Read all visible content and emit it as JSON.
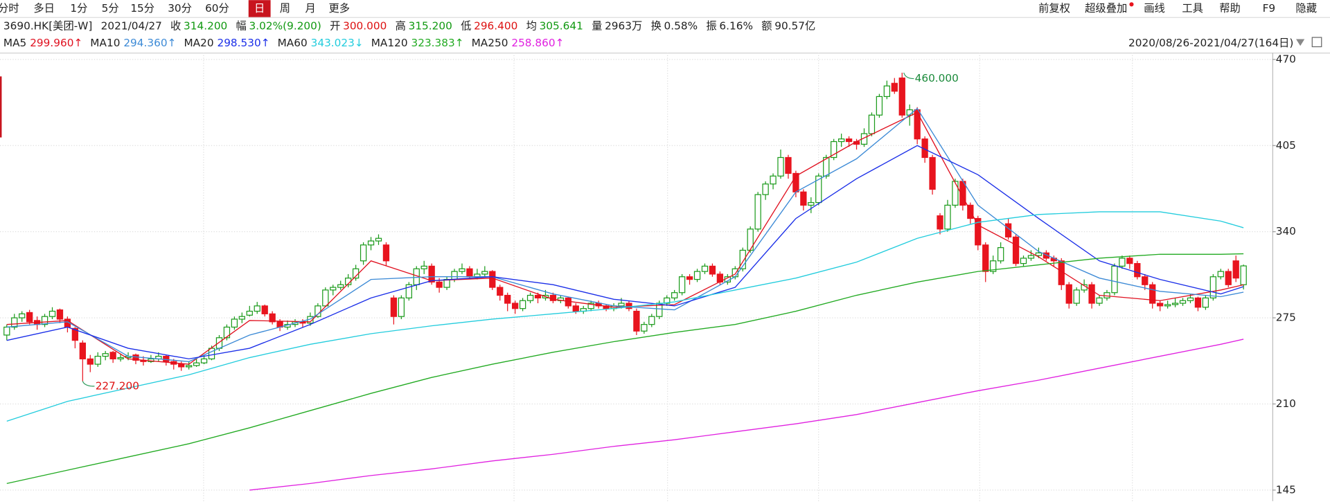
{
  "toolbar": {
    "periods": [
      "分时",
      "多日",
      "1分",
      "5分",
      "15分",
      "30分",
      "60分",
      "日",
      "周",
      "月",
      "更多"
    ],
    "selected": 7,
    "right": [
      "前复权",
      "超级叠加",
      "画线",
      "工具",
      "帮助",
      "F9",
      "隐藏"
    ]
  },
  "info": {
    "symbol": "3690.HK[美团-W]",
    "date": "2021/04/27",
    "fields": [
      {
        "label": "收",
        "value": "314.200",
        "color": "#119911"
      },
      {
        "label": "幅",
        "value": "3.02%(9.200)",
        "color": "#119911"
      },
      {
        "label": "开",
        "value": "300.000",
        "color": "#dd1111"
      },
      {
        "label": "高",
        "value": "315.200",
        "color": "#119911"
      },
      {
        "label": "低",
        "value": "296.400",
        "color": "#dd1111"
      },
      {
        "label": "均",
        "value": "305.641",
        "color": "#119911"
      },
      {
        "label": "量",
        "value": "2963万",
        "color": "#222222"
      },
      {
        "label": "换",
        "value": "0.58%",
        "color": "#222222"
      },
      {
        "label": "振",
        "value": "6.16%",
        "color": "#222222"
      },
      {
        "label": "额",
        "value": "90.57亿",
        "color": "#222222"
      }
    ]
  },
  "range_label": "2020/08/26-2021/04/27(164日)",
  "chart_data": {
    "type": "candlestick",
    "up_color": "#1a9a1a",
    "down_color": "#e8141e",
    "grid": true,
    "ylim": [
      138.6,
      475.1
    ],
    "yticks": [
      145,
      210,
      275,
      340,
      405,
      470
    ],
    "high_label": "460.000",
    "low_label": "227.200",
    "ohlc": [
      [
        262,
        270,
        258,
        268
      ],
      [
        268,
        278,
        266,
        275
      ],
      [
        275,
        280,
        272,
        278
      ],
      [
        279,
        281,
        270,
        272
      ],
      [
        273,
        276,
        266,
        270
      ],
      [
        270,
        278,
        268,
        276
      ],
      [
        276,
        283,
        274,
        280
      ],
      [
        281,
        282,
        271,
        274
      ],
      [
        274,
        276,
        264,
        268
      ],
      [
        267,
        268,
        252,
        258
      ],
      [
        256,
        258,
        227.2,
        244
      ],
      [
        244,
        247,
        234,
        240
      ],
      [
        240,
        249,
        238,
        246
      ],
      [
        246,
        250,
        243,
        248
      ],
      [
        249,
        250,
        241,
        244
      ],
      [
        244,
        248,
        242,
        245
      ],
      [
        245,
        249,
        243,
        246
      ],
      [
        247,
        248,
        240,
        243
      ],
      [
        243,
        246,
        239,
        242
      ],
      [
        242,
        247,
        241,
        244
      ],
      [
        244,
        249,
        242,
        246
      ],
      [
        246,
        247,
        239,
        242
      ],
      [
        242,
        244,
        236,
        240
      ],
      [
        240,
        242,
        235,
        238
      ],
      [
        238,
        242,
        236,
        239
      ],
      [
        239,
        244,
        238,
        241
      ],
      [
        241,
        247,
        240,
        244
      ],
      [
        244,
        254,
        243,
        252
      ],
      [
        252,
        262,
        250,
        260
      ],
      [
        260,
        270,
        258,
        268
      ],
      [
        268,
        276,
        266,
        274
      ],
      [
        274,
        279,
        271,
        276
      ],
      [
        277,
        284,
        276,
        280
      ],
      [
        280,
        287,
        278,
        284
      ],
      [
        284,
        285,
        276,
        278
      ],
      [
        278,
        280,
        270,
        272
      ],
      [
        272,
        274,
        265,
        268
      ],
      [
        268,
        273,
        266,
        270
      ],
      [
        270,
        274,
        268,
        272
      ],
      [
        272,
        274,
        268,
        271
      ],
      [
        271,
        279,
        269,
        276
      ],
      [
        276,
        286,
        275,
        284
      ],
      [
        284,
        298,
        283,
        296
      ],
      [
        296,
        300,
        292,
        298
      ],
      [
        298,
        303,
        296,
        300
      ],
      [
        300,
        308,
        298,
        305
      ],
      [
        305,
        315,
        303,
        312
      ],
      [
        318,
        332,
        315,
        330
      ],
      [
        330,
        336,
        326,
        333
      ],
      [
        333,
        338,
        330,
        335
      ],
      [
        330,
        332,
        314,
        318
      ],
      [
        290,
        292,
        270,
        276
      ],
      [
        276,
        292,
        274,
        290
      ],
      [
        290,
        302,
        288,
        300
      ],
      [
        300,
        314,
        296,
        312
      ],
      [
        312,
        318,
        308,
        314
      ],
      [
        314,
        316,
        300,
        302
      ],
      [
        302,
        305,
        294,
        298
      ],
      [
        298,
        306,
        296,
        304
      ],
      [
        304,
        312,
        302,
        310
      ],
      [
        310,
        316,
        308,
        312
      ],
      [
        312,
        314,
        304,
        306
      ],
      [
        306,
        312,
        304,
        308
      ],
      [
        308,
        314,
        306,
        310
      ],
      [
        310,
        311,
        296,
        298
      ],
      [
        298,
        300,
        288,
        292
      ],
      [
        292,
        294,
        280,
        286
      ],
      [
        286,
        288,
        278,
        282
      ],
      [
        282,
        290,
        280,
        288
      ],
      [
        288,
        294,
        286,
        292
      ],
      [
        292,
        294,
        286,
        290
      ],
      [
        290,
        296,
        288,
        292
      ],
      [
        292,
        294,
        286,
        288
      ],
      [
        288,
        292,
        286,
        290
      ],
      [
        290,
        291,
        282,
        284
      ],
      [
        284,
        286,
        278,
        280
      ],
      [
        280,
        284,
        278,
        282
      ],
      [
        282,
        288,
        280,
        286
      ],
      [
        286,
        288,
        282,
        284
      ],
      [
        284,
        285,
        280,
        282
      ],
      [
        282,
        286,
        280,
        284
      ],
      [
        284,
        290,
        282,
        286
      ],
      [
        286,
        288,
        280,
        282
      ],
      [
        280,
        282,
        262,
        265
      ],
      [
        265,
        272,
        263,
        270
      ],
      [
        270,
        278,
        268,
        276
      ],
      [
        276,
        288,
        274,
        286
      ],
      [
        286,
        292,
        284,
        290
      ],
      [
        290,
        296,
        288,
        294
      ],
      [
        294,
        308,
        292,
        306
      ],
      [
        306,
        308,
        300,
        304
      ],
      [
        304,
        312,
        302,
        310
      ],
      [
        310,
        316,
        308,
        314
      ],
      [
        314,
        316,
        306,
        308
      ],
      [
        308,
        310,
        300,
        302
      ],
      [
        302,
        308,
        300,
        306
      ],
      [
        306,
        314,
        304,
        312
      ],
      [
        312,
        328,
        310,
        326
      ],
      [
        326,
        344,
        324,
        342
      ],
      [
        342,
        370,
        340,
        368
      ],
      [
        368,
        378,
        364,
        376
      ],
      [
        376,
        384,
        372,
        382
      ],
      [
        382,
        402,
        380,
        396
      ],
      [
        396,
        398,
        380,
        384
      ],
      [
        384,
        386,
        366,
        370
      ],
      [
        370,
        372,
        356,
        360
      ],
      [
        360,
        366,
        354,
        362
      ],
      [
        362,
        384,
        360,
        382
      ],
      [
        382,
        398,
        380,
        396
      ],
      [
        396,
        410,
        394,
        408
      ],
      [
        408,
        414,
        404,
        410
      ],
      [
        410,
        412,
        404,
        408
      ],
      [
        408,
        410,
        402,
        406
      ],
      [
        406,
        418,
        404,
        414
      ],
      [
        414,
        430,
        412,
        428
      ],
      [
        428,
        444,
        426,
        442
      ],
      [
        442,
        454,
        440,
        450
      ],
      [
        452,
        456,
        444,
        446
      ],
      [
        456,
        460,
        426,
        428
      ],
      [
        428,
        436,
        420,
        432
      ],
      [
        432,
        434,
        406,
        410
      ],
      [
        410,
        412,
        392,
        396
      ],
      [
        396,
        398,
        368,
        372
      ],
      [
        352,
        354,
        338,
        342
      ],
      [
        342,
        364,
        340,
        360
      ],
      [
        360,
        380,
        358,
        378
      ],
      [
        378,
        380,
        356,
        360
      ],
      [
        360,
        362,
        346,
        350
      ],
      [
        350,
        352,
        326,
        330
      ],
      [
        330,
        332,
        302,
        310
      ],
      [
        310,
        322,
        308,
        318
      ],
      [
        318,
        332,
        316,
        328
      ],
      [
        346,
        350,
        334,
        336
      ],
      [
        336,
        338,
        314,
        316
      ],
      [
        316,
        322,
        314,
        320
      ],
      [
        320,
        326,
        318,
        322
      ],
      [
        322,
        328,
        320,
        324
      ],
      [
        324,
        326,
        318,
        320
      ],
      [
        320,
        322,
        314,
        318
      ],
      [
        318,
        320,
        296,
        300
      ],
      [
        300,
        302,
        282,
        286
      ],
      [
        286,
        298,
        284,
        296
      ],
      [
        296,
        304,
        294,
        300
      ],
      [
        300,
        302,
        282,
        286
      ],
      [
        286,
        292,
        284,
        290
      ],
      [
        290,
        296,
        288,
        294
      ],
      [
        294,
        316,
        292,
        314
      ],
      [
        314,
        322,
        312,
        320
      ],
      [
        320,
        322,
        312,
        316
      ],
      [
        316,
        318,
        304,
        306
      ],
      [
        306,
        308,
        296,
        300
      ],
      [
        300,
        302,
        282,
        286
      ],
      [
        286,
        288,
        280,
        284
      ],
      [
        284,
        288,
        282,
        285
      ],
      [
        285,
        290,
        283,
        286
      ],
      [
        286,
        290,
        284,
        288
      ],
      [
        288,
        293,
        286,
        290
      ],
      [
        290,
        291,
        280,
        283
      ],
      [
        283,
        292,
        281,
        290
      ],
      [
        290,
        308,
        288,
        306
      ],
      [
        306,
        312,
        304,
        310
      ],
      [
        310,
        312,
        298,
        300
      ],
      [
        318,
        322,
        302,
        305
      ],
      [
        300,
        315.2,
        296.4,
        314.2
      ]
    ],
    "ma_x": [
      0,
      8,
      16,
      24,
      32,
      40,
      48,
      56,
      64,
      72,
      80,
      88,
      96,
      104,
      112,
      120,
      128,
      136,
      144,
      152,
      160,
      163
    ],
    "series": [
      {
        "name": "MA5",
        "color": "#e0101f",
        "value_label": "299.960↑",
        "values": [
          270,
          273,
          244,
          240,
          273,
          272,
          318,
          303,
          305,
          289,
          283,
          285,
          308,
          382,
          408,
          430,
          345,
          321,
          292,
          288,
          296,
          299.96
        ]
      },
      {
        "name": "MA10",
        "color": "#3c8ad6",
        "value_label": "294.360↑",
        "values": [
          268,
          272,
          246,
          242,
          262,
          274,
          304,
          306,
          306,
          293,
          284,
          281,
          306,
          370,
          395,
          433,
          360,
          325,
          305,
          295,
          291,
          294.36
        ]
      },
      {
        "name": "MA20",
        "color": "#1a2ee8",
        "value_label": "298.530↑",
        "values": [
          258,
          268,
          252,
          244,
          252,
          270,
          290,
          303,
          306,
          300,
          289,
          284,
          298,
          350,
          380,
          405,
          383,
          350,
          318,
          304,
          293,
          298.53
        ]
      },
      {
        "name": "MA60",
        "color": "#22ccdd",
        "value_label": "343.023↓",
        "values": [
          197,
          212,
          222,
          232,
          245,
          255,
          263,
          269,
          274,
          278,
          282,
          287,
          296,
          305,
          317,
          335,
          347,
          353,
          355,
          355,
          348,
          343.023
        ]
      },
      {
        "name": "MA120",
        "color": "#22aa22",
        "value_label": "323.383↑",
        "values": [
          150,
          160,
          170,
          180,
          192,
          205,
          218,
          230,
          240,
          249,
          257,
          264,
          270,
          280,
          292,
          302,
          310,
          315,
          320,
          323,
          323,
          323.383
        ]
      },
      {
        "name": "MA250",
        "color": "#e020e0",
        "value_label": "258.860↑",
        "values": [
          null,
          null,
          null,
          null,
          145,
          150,
          156,
          161,
          167,
          172,
          178,
          183,
          189,
          195,
          202,
          211,
          220,
          228,
          237,
          246,
          255,
          258.86
        ]
      }
    ]
  }
}
